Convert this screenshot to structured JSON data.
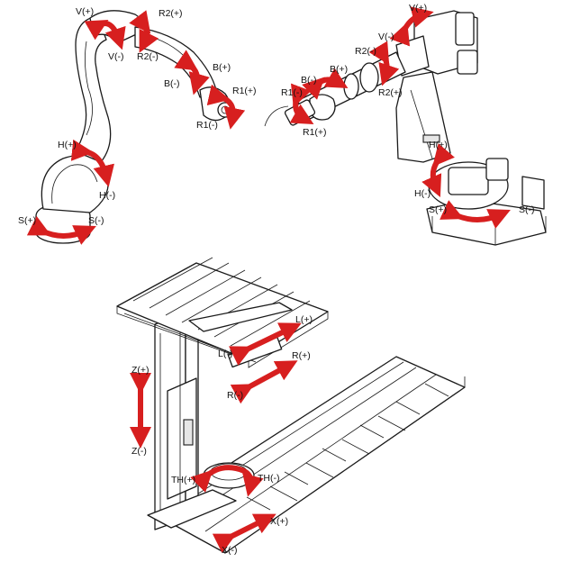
{
  "axis_labels": {
    "a1_v_plus": "V(+)",
    "a1_v_minus": "V(-)",
    "a1_r2_plus": "R2(+)",
    "a1_r2_minus": "R2(-)",
    "a1_b_plus": "B(+)",
    "a1_b_minus": "B(-)",
    "a1_r1_plus": "R1(+)",
    "a1_r1_minus": "R1(-)",
    "a1_h_plus": "H(+)",
    "a1_h_minus": "H(-)",
    "a1_s_plus": "S(+)",
    "a1_s_minus": "S(-)",
    "a2_v_plus": "V(+)",
    "a2_v_minus": "V(-)",
    "a2_r2_minus": "R2(-)",
    "a2_r2_plus": "R2(+)",
    "a2_b_plus": "B(+)",
    "a2_b_minus": "B(-)",
    "a2_r1_minus": "R1(-)",
    "a2_r1_plus": "R1(+)",
    "a2_h_plus": "H(+)",
    "a2_h_minus": "H(-)",
    "a2_s_plus": "S(+)",
    "a2_s_minus": "S(-)",
    "g_l_plus": "L(+)",
    "g_l_minus": "L(-)",
    "g_r_plus": "R(+)",
    "g_r_minus": "R(-)",
    "g_z_plus": "Z(+)",
    "g_z_minus": "Z(-)",
    "g_th_plus": "TH(+)",
    "g_th_minus": "TH(-)",
    "g_x_plus": "X(+)",
    "g_x_minus": "X(-)"
  },
  "colors": {
    "arrow": "#d71f1f",
    "line": "#1a1a1a",
    "fill": "#ffffff",
    "shade": "#e6e6e6"
  }
}
